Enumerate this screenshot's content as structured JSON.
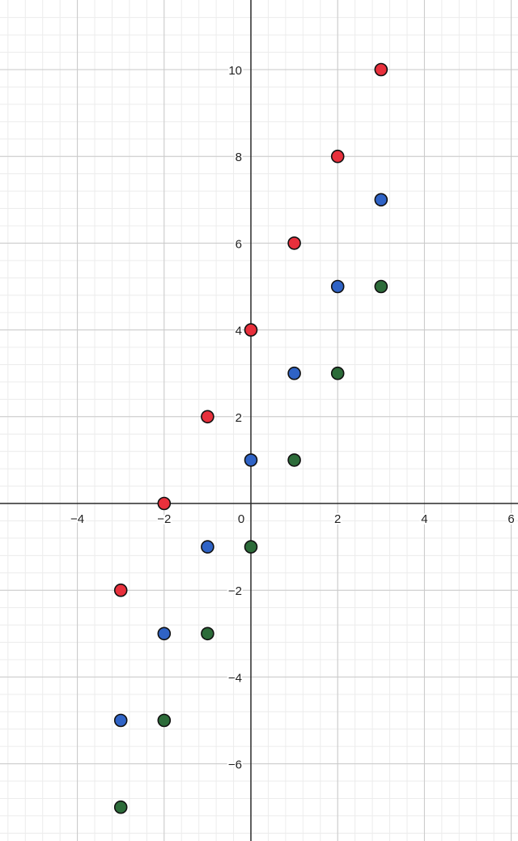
{
  "chart_data": {
    "type": "scatter",
    "title": "",
    "xlabel": "",
    "ylabel": "",
    "xlim": [
      -5.8,
      6.1
    ],
    "ylim": [
      -7.7,
      11.6
    ],
    "grid": true,
    "x_ticks": [
      {
        "value": -4,
        "label": "−4"
      },
      {
        "value": -2,
        "label": "−2"
      },
      {
        "value": 0,
        "label": "0"
      },
      {
        "value": 2,
        "label": "2"
      },
      {
        "value": 4,
        "label": "4"
      },
      {
        "value": 6,
        "label": "6"
      }
    ],
    "y_ticks": [
      {
        "value": 10,
        "label": "10"
      },
      {
        "value": 8,
        "label": "8"
      },
      {
        "value": 6,
        "label": "6"
      },
      {
        "value": 4,
        "label": "4"
      },
      {
        "value": 2,
        "label": "2"
      },
      {
        "value": -2,
        "label": "−2"
      },
      {
        "value": -4,
        "label": "−4"
      },
      {
        "value": -6,
        "label": "−6"
      }
    ],
    "series": [
      {
        "color": "#e8303c",
        "x": [
          -3,
          -2,
          -1,
          0,
          1,
          2,
          3
        ],
        "y": [
          -2,
          0,
          2,
          4,
          6,
          8,
          10
        ]
      },
      {
        "color": "#2f63c6",
        "x": [
          -3,
          -2,
          -1,
          0,
          1,
          2,
          3
        ],
        "y": [
          -5,
          -3,
          -1,
          1,
          3,
          5,
          7
        ]
      },
      {
        "color": "#2c6b39",
        "x": [
          -3,
          -2,
          -1,
          0,
          1,
          2,
          3
        ],
        "y": [
          -7,
          -5,
          -3,
          -1,
          1,
          3,
          5
        ]
      }
    ]
  }
}
